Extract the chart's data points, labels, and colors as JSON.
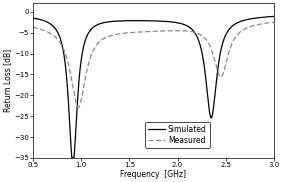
{
  "xlabel": "Frequency  [GHz]",
  "ylabel": "Return Loss [dB]",
  "xlim": [
    0.5,
    3.0
  ],
  "ylim": [
    -35,
    2
  ],
  "xticks": [
    0.5,
    1.0,
    1.5,
    2.0,
    2.5,
    3.0
  ],
  "yticks": [
    0,
    -5,
    -10,
    -15,
    -20,
    -25,
    -30,
    -35
  ],
  "legend": [
    "Simulated",
    "Measured"
  ],
  "simulated_color": "#000000",
  "measured_color": "#888888",
  "background_color": "#ffffff",
  "axis_fontsize": 5.5,
  "tick_fontsize": 5.0,
  "legend_fontsize": 5.5
}
